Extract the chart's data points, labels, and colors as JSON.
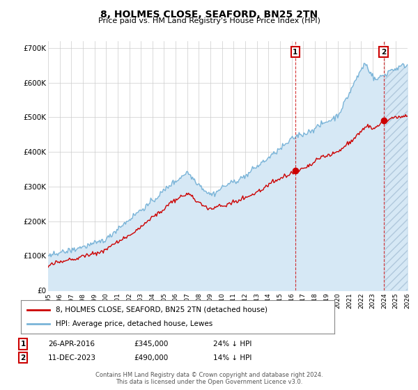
{
  "title": "8, HOLMES CLOSE, SEAFORD, BN25 2TN",
  "subtitle": "Price paid vs. HM Land Registry's House Price Index (HPI)",
  "footer": "Contains HM Land Registry data © Crown copyright and database right 2024.\nThis data is licensed under the Open Government Licence v3.0.",
  "legend_line1": "8, HOLMES CLOSE, SEAFORD, BN25 2TN (detached house)",
  "legend_line2": "HPI: Average price, detached house, Lewes",
  "ann1_date": "26-APR-2016",
  "ann1_price": "£345,000",
  "ann1_pct": "24% ↓ HPI",
  "ann2_date": "11-DEC-2023",
  "ann2_price": "£490,000",
  "ann2_pct": "14% ↓ HPI",
  "hpi_color": "#7ab4d8",
  "hpi_fill_color": "#d6e8f5",
  "price_color": "#cc0000",
  "marker1_x": 2016.32,
  "marker1_y": 345000,
  "marker2_x": 2023.94,
  "marker2_y": 490000,
  "xmin": 1995,
  "xmax": 2026,
  "ymin": 0,
  "ymax": 720000,
  "yticks": [
    0,
    100000,
    200000,
    300000,
    400000,
    500000,
    600000,
    700000
  ],
  "ytick_labels": [
    "£0",
    "£100K",
    "£200K",
    "£300K",
    "£400K",
    "£500K",
    "£600K",
    "£700K"
  ],
  "plot_bg": "#ffffff",
  "hatch_color": "#c8d8e8"
}
